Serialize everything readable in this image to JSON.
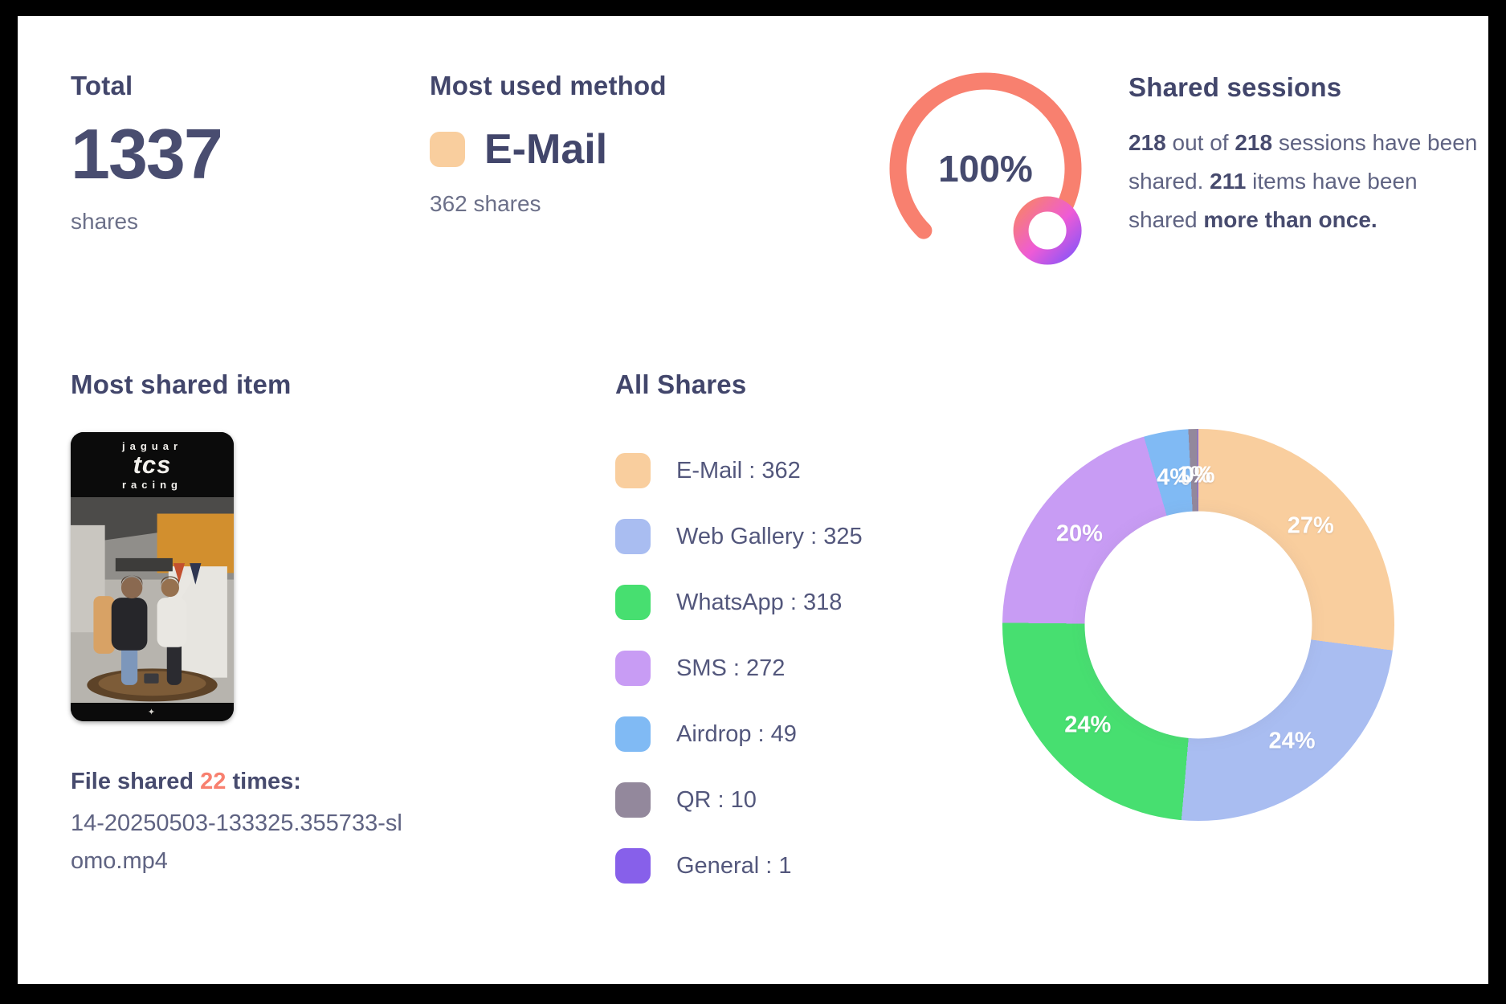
{
  "cards": {
    "total": {
      "title": "Total",
      "value": "1337",
      "unit": "shares"
    },
    "most_used_method": {
      "title": "Most used method",
      "method": "E-Mail",
      "shares_text": "362 shares",
      "swatch_color": "#F9CE9E"
    },
    "shared_sessions": {
      "title": "Shared sessions",
      "gauge_label": "100%",
      "description_segments": [
        {
          "text": "218",
          "bold": true
        },
        {
          "text": " out of ",
          "bold": false
        },
        {
          "text": "218",
          "bold": true
        },
        {
          "text": " sessions have been shared. ",
          "bold": false
        },
        {
          "text": "211",
          "bold": true
        },
        {
          "text": " items have been shared ",
          "bold": false
        },
        {
          "text": "more than once.",
          "bold": true
        }
      ]
    },
    "most_shared_item": {
      "title": "Most shared item",
      "thumbnail_brand": {
        "line1": "Jaguar",
        "line2": "tcs",
        "line3": "racing"
      },
      "file_shared_segments": [
        {
          "text": "File shared ",
          "bold": true
        },
        {
          "text": "22",
          "bold": true,
          "color": "#F8806F"
        },
        {
          "text": " times:",
          "bold": true
        }
      ],
      "filename": "14-20250503-133325.355733-slomo.mp4"
    },
    "all_shares": {
      "title": "All Shares"
    }
  },
  "colors": {
    "heading": "#42466B",
    "body_text": "#5F6382",
    "coral": "#F8806F"
  },
  "chart_data": [
    {
      "type": "pie",
      "subtype": "donut",
      "title": "All Shares",
      "direction": "clockwise",
      "start_angle_deg": 0,
      "legend_position": "left",
      "total": 1337,
      "series": [
        {
          "name": "E-Mail",
          "value": 362,
          "percent_label": "27%",
          "color": "#F9CE9E"
        },
        {
          "name": "Web Gallery",
          "value": 325,
          "percent_label": "24%",
          "color": "#A9BDF1"
        },
        {
          "name": "WhatsApp",
          "value": 318,
          "percent_label": "24%",
          "color": "#47DF70"
        },
        {
          "name": "SMS",
          "value": 272,
          "percent_label": "20%",
          "color": "#C89CF4"
        },
        {
          "name": "Airdrop",
          "value": 49,
          "percent_label": "4%",
          "color": "#80BAF4"
        },
        {
          "name": "QR",
          "value": 10,
          "percent_label": "1%",
          "color": "#93889C"
        },
        {
          "name": "General",
          "value": 1,
          "percent_label": "0%",
          "color": "#8760EA"
        }
      ]
    },
    {
      "type": "gauge",
      "title": "Shared sessions",
      "value": 100,
      "max": 100,
      "label": "100%",
      "sweep_deg": 270,
      "arc_color": "#F8806F",
      "marker_gradient": [
        "#F8816E",
        "#EE5BD6",
        "#8F55F6"
      ]
    }
  ]
}
